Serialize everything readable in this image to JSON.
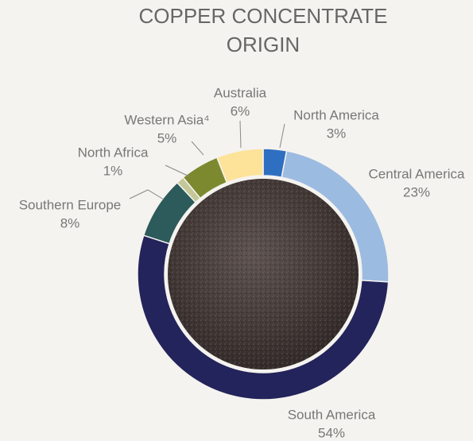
{
  "chart_data": {
    "type": "donut",
    "title": [
      "COPPER CONCENTRATE",
      "ORIGIN"
    ],
    "categories": [
      "North America",
      "Central America",
      "South America",
      "Southern Europe",
      "North Africa",
      "Western Asia⁴",
      "Australia"
    ],
    "values": [
      3,
      23,
      54,
      8,
      1,
      5,
      6
    ],
    "value_labels": [
      "3%",
      "23%",
      "54%",
      "8%",
      "1%",
      "5%",
      "6%"
    ],
    "colors": [
      "#2f6fc2",
      "#9cbbe1",
      "#23245b",
      "#2d5a5b",
      "#c4c899",
      "#7c892f",
      "#fde39a"
    ]
  }
}
